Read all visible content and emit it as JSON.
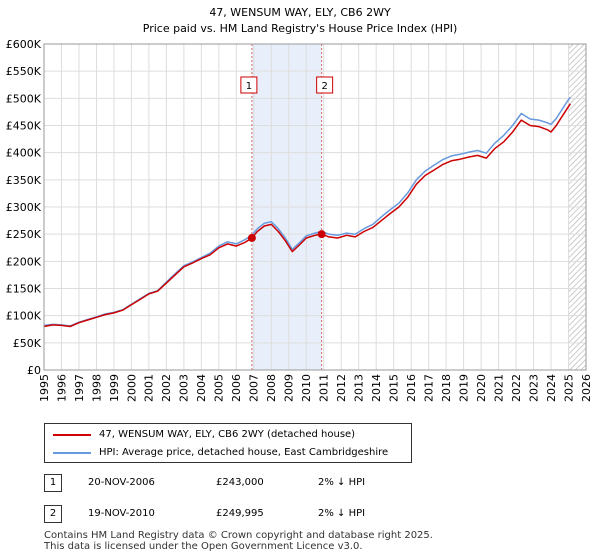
{
  "chart_data": {
    "type": "line",
    "title": "47, WENSUM WAY, ELY, CB6 2WY",
    "subtitle": "Price paid vs. HM Land Registry's House Price Index (HPI)",
    "ylim": [
      0,
      600000
    ],
    "xlim": [
      1995,
      2026
    ],
    "y_ticks": [
      {
        "value": 0,
        "label": "£0"
      },
      {
        "value": 50000,
        "label": "£50K"
      },
      {
        "value": 100000,
        "label": "£100K"
      },
      {
        "value": 150000,
        "label": "£150K"
      },
      {
        "value": 200000,
        "label": "£200K"
      },
      {
        "value": 250000,
        "label": "£250K"
      },
      {
        "value": 300000,
        "label": "£300K"
      },
      {
        "value": 350000,
        "label": "£350K"
      },
      {
        "value": 400000,
        "label": "£400K"
      },
      {
        "value": 450000,
        "label": "£450K"
      },
      {
        "value": 500000,
        "label": "£500K"
      },
      {
        "value": 550000,
        "label": "£550K"
      },
      {
        "value": 600000,
        "label": "£600K"
      }
    ],
    "x_ticks": [
      "1995",
      "1996",
      "1997",
      "1998",
      "1999",
      "2000",
      "2001",
      "2002",
      "2003",
      "2004",
      "2005",
      "2006",
      "2007",
      "2008",
      "2009",
      "2010",
      "2011",
      "2012",
      "2013",
      "2014",
      "2015",
      "2016",
      "2017",
      "2018",
      "2019",
      "2020",
      "2021",
      "2022",
      "2023",
      "2024",
      "2025",
      "2026"
    ],
    "shaded_period": [
      2006.89,
      2010.88
    ],
    "hatched_from": 2025.0,
    "series": [
      {
        "name": "47, WENSUM WAY, ELY, CB6 2WY (detached house)",
        "color": "#cc0000",
        "points": [
          [
            1995.0,
            80000
          ],
          [
            1995.5,
            83000
          ],
          [
            1996.0,
            82000
          ],
          [
            1996.5,
            80000
          ],
          [
            1997.0,
            87000
          ],
          [
            1997.5,
            92000
          ],
          [
            1998.0,
            97000
          ],
          [
            1998.5,
            102000
          ],
          [
            1999.0,
            105000
          ],
          [
            1999.5,
            110000
          ],
          [
            2000.0,
            120000
          ],
          [
            2000.5,
            130000
          ],
          [
            2001.0,
            140000
          ],
          [
            2001.5,
            145000
          ],
          [
            2002.0,
            160000
          ],
          [
            2002.5,
            175000
          ],
          [
            2003.0,
            190000
          ],
          [
            2003.5,
            197000
          ],
          [
            2004.0,
            205000
          ],
          [
            2004.5,
            212000
          ],
          [
            2005.0,
            225000
          ],
          [
            2005.5,
            232000
          ],
          [
            2006.0,
            228000
          ],
          [
            2006.5,
            235000
          ],
          [
            2006.89,
            243000
          ],
          [
            2007.2,
            255000
          ],
          [
            2007.6,
            265000
          ],
          [
            2008.0,
            268000
          ],
          [
            2008.4,
            255000
          ],
          [
            2008.8,
            238000
          ],
          [
            2009.2,
            218000
          ],
          [
            2009.6,
            230000
          ],
          [
            2010.0,
            243000
          ],
          [
            2010.5,
            248000
          ],
          [
            2010.88,
            249995
          ],
          [
            2011.3,
            245000
          ],
          [
            2011.8,
            243000
          ],
          [
            2012.3,
            248000
          ],
          [
            2012.8,
            245000
          ],
          [
            2013.3,
            255000
          ],
          [
            2013.8,
            262000
          ],
          [
            2014.3,
            275000
          ],
          [
            2014.8,
            288000
          ],
          [
            2015.3,
            300000
          ],
          [
            2015.8,
            318000
          ],
          [
            2016.3,
            342000
          ],
          [
            2016.8,
            358000
          ],
          [
            2017.3,
            368000
          ],
          [
            2017.8,
            378000
          ],
          [
            2018.3,
            385000
          ],
          [
            2018.8,
            388000
          ],
          [
            2019.3,
            392000
          ],
          [
            2019.8,
            395000
          ],
          [
            2020.3,
            390000
          ],
          [
            2020.8,
            408000
          ],
          [
            2021.3,
            420000
          ],
          [
            2021.8,
            438000
          ],
          [
            2022.3,
            460000
          ],
          [
            2022.8,
            450000
          ],
          [
            2023.3,
            448000
          ],
          [
            2023.8,
            442000
          ],
          [
            2024.0,
            438000
          ],
          [
            2024.3,
            450000
          ],
          [
            2024.6,
            465000
          ],
          [
            2024.9,
            480000
          ],
          [
            2025.1,
            490000
          ]
        ]
      },
      {
        "name": "HPI: Average price, detached house, East Cambridgeshire",
        "color": "#6699dd",
        "points": [
          [
            1995.0,
            82000
          ],
          [
            1995.5,
            84000
          ],
          [
            1996.0,
            83000
          ],
          [
            1996.5,
            81000
          ],
          [
            1997.0,
            88000
          ],
          [
            1997.5,
            93000
          ],
          [
            1998.0,
            98000
          ],
          [
            1998.5,
            103000
          ],
          [
            1999.0,
            106000
          ],
          [
            1999.5,
            111000
          ],
          [
            2000.0,
            121000
          ],
          [
            2000.5,
            131000
          ],
          [
            2001.0,
            141000
          ],
          [
            2001.5,
            146000
          ],
          [
            2002.0,
            162000
          ],
          [
            2002.5,
            177000
          ],
          [
            2003.0,
            192000
          ],
          [
            2003.5,
            199000
          ],
          [
            2004.0,
            207000
          ],
          [
            2004.5,
            215000
          ],
          [
            2005.0,
            228000
          ],
          [
            2005.5,
            236000
          ],
          [
            2006.0,
            232000
          ],
          [
            2006.5,
            240000
          ],
          [
            2006.89,
            248000
          ],
          [
            2007.2,
            260000
          ],
          [
            2007.6,
            270000
          ],
          [
            2008.0,
            273000
          ],
          [
            2008.4,
            260000
          ],
          [
            2008.8,
            243000
          ],
          [
            2009.2,
            222000
          ],
          [
            2009.6,
            234000
          ],
          [
            2010.0,
            247000
          ],
          [
            2010.5,
            252000
          ],
          [
            2010.88,
            255000
          ],
          [
            2011.3,
            250000
          ],
          [
            2011.8,
            248000
          ],
          [
            2012.3,
            252000
          ],
          [
            2012.8,
            250000
          ],
          [
            2013.3,
            260000
          ],
          [
            2013.8,
            268000
          ],
          [
            2014.3,
            282000
          ],
          [
            2014.8,
            295000
          ],
          [
            2015.3,
            307000
          ],
          [
            2015.8,
            326000
          ],
          [
            2016.3,
            350000
          ],
          [
            2016.8,
            366000
          ],
          [
            2017.3,
            377000
          ],
          [
            2017.8,
            387000
          ],
          [
            2018.3,
            394000
          ],
          [
            2018.8,
            397000
          ],
          [
            2019.3,
            401000
          ],
          [
            2019.8,
            404000
          ],
          [
            2020.3,
            399000
          ],
          [
            2020.8,
            418000
          ],
          [
            2021.3,
            432000
          ],
          [
            2021.8,
            450000
          ],
          [
            2022.3,
            472000
          ],
          [
            2022.8,
            462000
          ],
          [
            2023.3,
            460000
          ],
          [
            2023.8,
            455000
          ],
          [
            2024.0,
            452000
          ],
          [
            2024.3,
            463000
          ],
          [
            2024.6,
            478000
          ],
          [
            2024.9,
            493000
          ],
          [
            2025.1,
            502000
          ]
        ]
      }
    ],
    "markers": [
      {
        "label": "1",
        "x": 2006.89,
        "y": 243000
      },
      {
        "label": "2",
        "x": 2010.88,
        "y": 249995
      }
    ]
  },
  "legend": [
    {
      "text": "47, WENSUM WAY, ELY, CB6 2WY (detached house)",
      "color": "#cc0000"
    },
    {
      "text": "HPI: Average price, detached house, East Cambridgeshire",
      "color": "#6699dd"
    }
  ],
  "transactions": [
    {
      "num": "1",
      "date": "20-NOV-2006",
      "price": "£243,000",
      "hpi": "2% ↓ HPI"
    },
    {
      "num": "2",
      "date": "19-NOV-2010",
      "price": "£249,995",
      "hpi": "2% ↓ HPI"
    }
  ],
  "footer": {
    "line1": "Contains HM Land Registry data © Crown copyright and database right 2025.",
    "line2": "This data is licensed under the Open Government Licence v3.0."
  }
}
